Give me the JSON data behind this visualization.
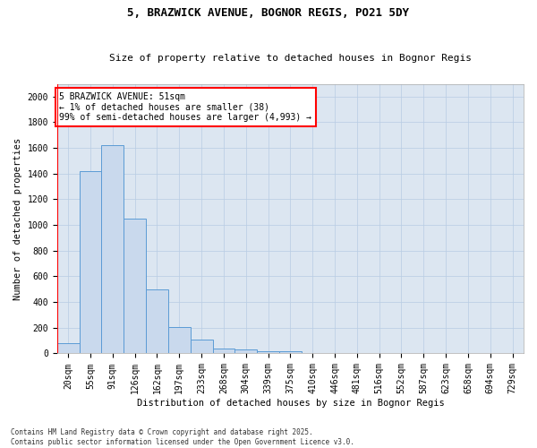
{
  "title1": "5, BRAZWICK AVENUE, BOGNOR REGIS, PO21 5DY",
  "title2": "Size of property relative to detached houses in Bognor Regis",
  "xlabel": "Distribution of detached houses by size in Bognor Regis",
  "ylabel": "Number of detached properties",
  "bar_color": "#c9d9ed",
  "bar_edge_color": "#5b9bd5",
  "bg_color": "#dce6f1",
  "annotation_text": "5 BRAZWICK AVENUE: 51sqm\n← 1% of detached houses are smaller (38)\n99% of semi-detached houses are larger (4,993) →",
  "annotation_box_color": "white",
  "annotation_box_edge": "red",
  "vline_color": "red",
  "categories": [
    "20sqm",
    "55sqm",
    "91sqm",
    "126sqm",
    "162sqm",
    "197sqm",
    "233sqm",
    "268sqm",
    "304sqm",
    "339sqm",
    "375sqm",
    "410sqm",
    "446sqm",
    "481sqm",
    "516sqm",
    "552sqm",
    "587sqm",
    "623sqm",
    "658sqm",
    "694sqm",
    "729sqm"
  ],
  "values": [
    80,
    1420,
    1620,
    1050,
    500,
    205,
    105,
    40,
    30,
    20,
    20,
    0,
    0,
    0,
    0,
    0,
    0,
    0,
    0,
    0,
    0
  ],
  "ylim": [
    0,
    2100
  ],
  "yticks": [
    0,
    200,
    400,
    600,
    800,
    1000,
    1200,
    1400,
    1600,
    1800,
    2000
  ],
  "footer1": "Contains HM Land Registry data © Crown copyright and database right 2025.",
  "footer2": "Contains public sector information licensed under the Open Government Licence v3.0.",
  "grid_color": "#b8cce4",
  "title1_fontsize": 9,
  "title2_fontsize": 8,
  "xlabel_fontsize": 7.5,
  "ylabel_fontsize": 7.5,
  "tick_fontsize": 7,
  "footer_fontsize": 5.5,
  "annot_fontsize": 7
}
